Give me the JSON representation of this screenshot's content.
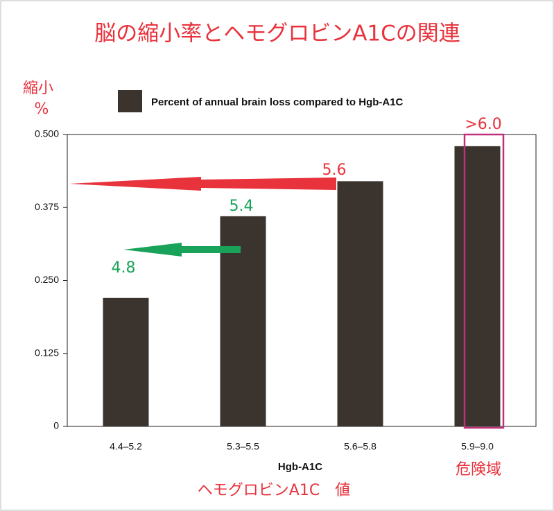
{
  "chart_data": {
    "type": "bar",
    "title": "脳の縮小率とヘモグロビンA1Cの関連",
    "y_label_lines": [
      "縮小",
      "%"
    ],
    "legend": "Percent of annual brain loss compared to Hgb-A1C",
    "categories": [
      "4.4–5.2",
      "5.3–5.5",
      "5.6–5.8",
      "5.9–9.0"
    ],
    "values": [
      0.22,
      0.36,
      0.42,
      0.48
    ],
    "color": "#3b342e",
    "ylim": [
      0,
      0.5
    ],
    "yticks": [
      0,
      0.125,
      {
        "value": 0.25,
        "label": "0.250"
      },
      0.375,
      {
        "value": 0.5,
        "label": "0.500"
      }
    ],
    "x_label": "Hgb-A1C",
    "x_label_jp": "ヘモグロビンA1C　値",
    "danger_label": "危険域",
    "annotations": [
      "5.6",
      "5.4",
      "4.8",
      ">6.0"
    ]
  }
}
